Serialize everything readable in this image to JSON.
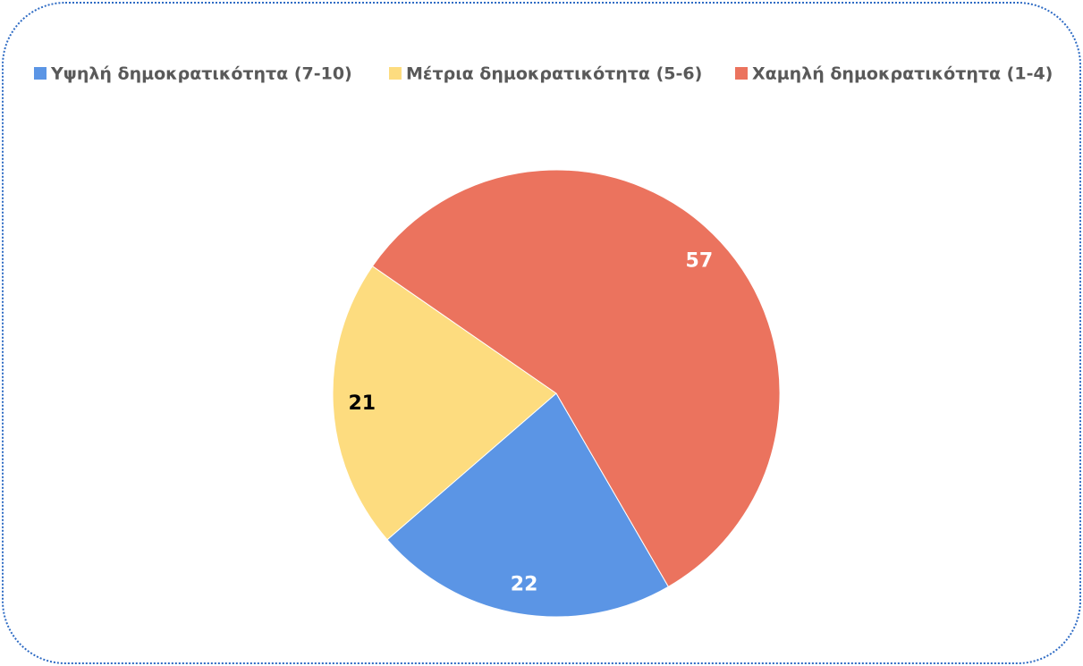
{
  "chart_data": {
    "type": "pie",
    "categories": [
      "Υψηλή δημοκρατικότητα (7-10)",
      "Μέτρια δημοκρατικότητα (5-6)",
      "Χαμηλή δημοκρατικότητα (1-4)"
    ],
    "series": [
      {
        "values": [
          22,
          21,
          57
        ],
        "colors": [
          "#5b95e5",
          "#fddc7f",
          "#eb735e"
        ]
      }
    ],
    "legend": "top"
  }
}
